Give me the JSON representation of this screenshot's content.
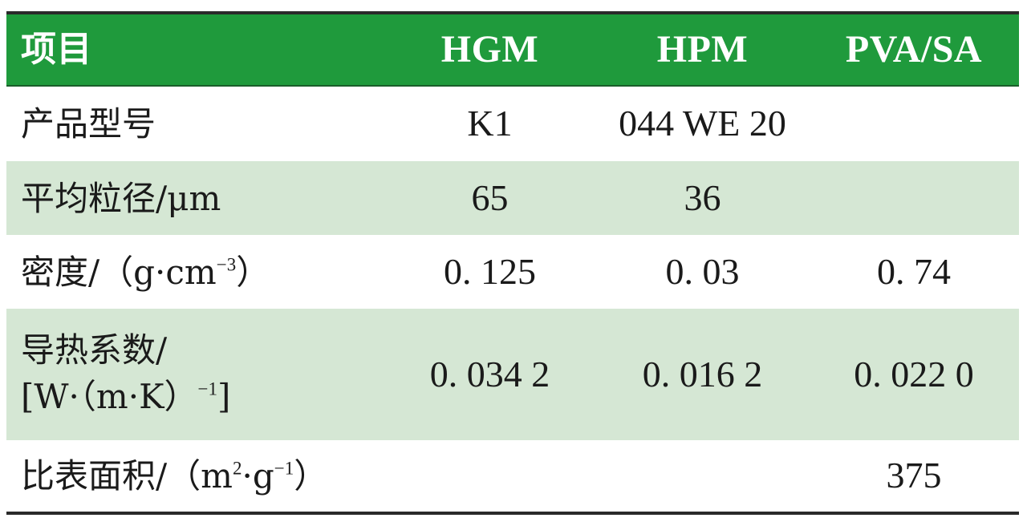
{
  "table": {
    "header": {
      "item": "项目",
      "hgm": "HGM",
      "hpm": "HPM",
      "pva": "PVA/SA"
    },
    "rows": [
      {
        "label_text": "产品型号",
        "label_unit": "",
        "hgm": "K1",
        "hpm": "044 WE 20",
        "pva": ""
      },
      {
        "label_text": "平均粒径/μm",
        "label_unit": "",
        "hgm": "65",
        "hpm": "36",
        "pva": ""
      },
      {
        "label_text": "密度/（g·cm",
        "label_sup": "−3",
        "label_tail": "）",
        "hgm": "0. 125",
        "hpm": "0. 03",
        "pva": "0. 74"
      },
      {
        "label_text": "导热系数/",
        "label_line2": "[W·（m·K）",
        "label_sup": "−1",
        "label_tail": "]",
        "hgm": "0. 034 2",
        "hpm": "0. 016 2",
        "pva": "0. 022 0"
      },
      {
        "label_text": "比表面积/（m",
        "label_sup": "2",
        "label_mid": "·g",
        "label_sup2": "−1",
        "label_tail": "）",
        "hgm": "",
        "hpm": "",
        "pva": "375"
      }
    ]
  }
}
